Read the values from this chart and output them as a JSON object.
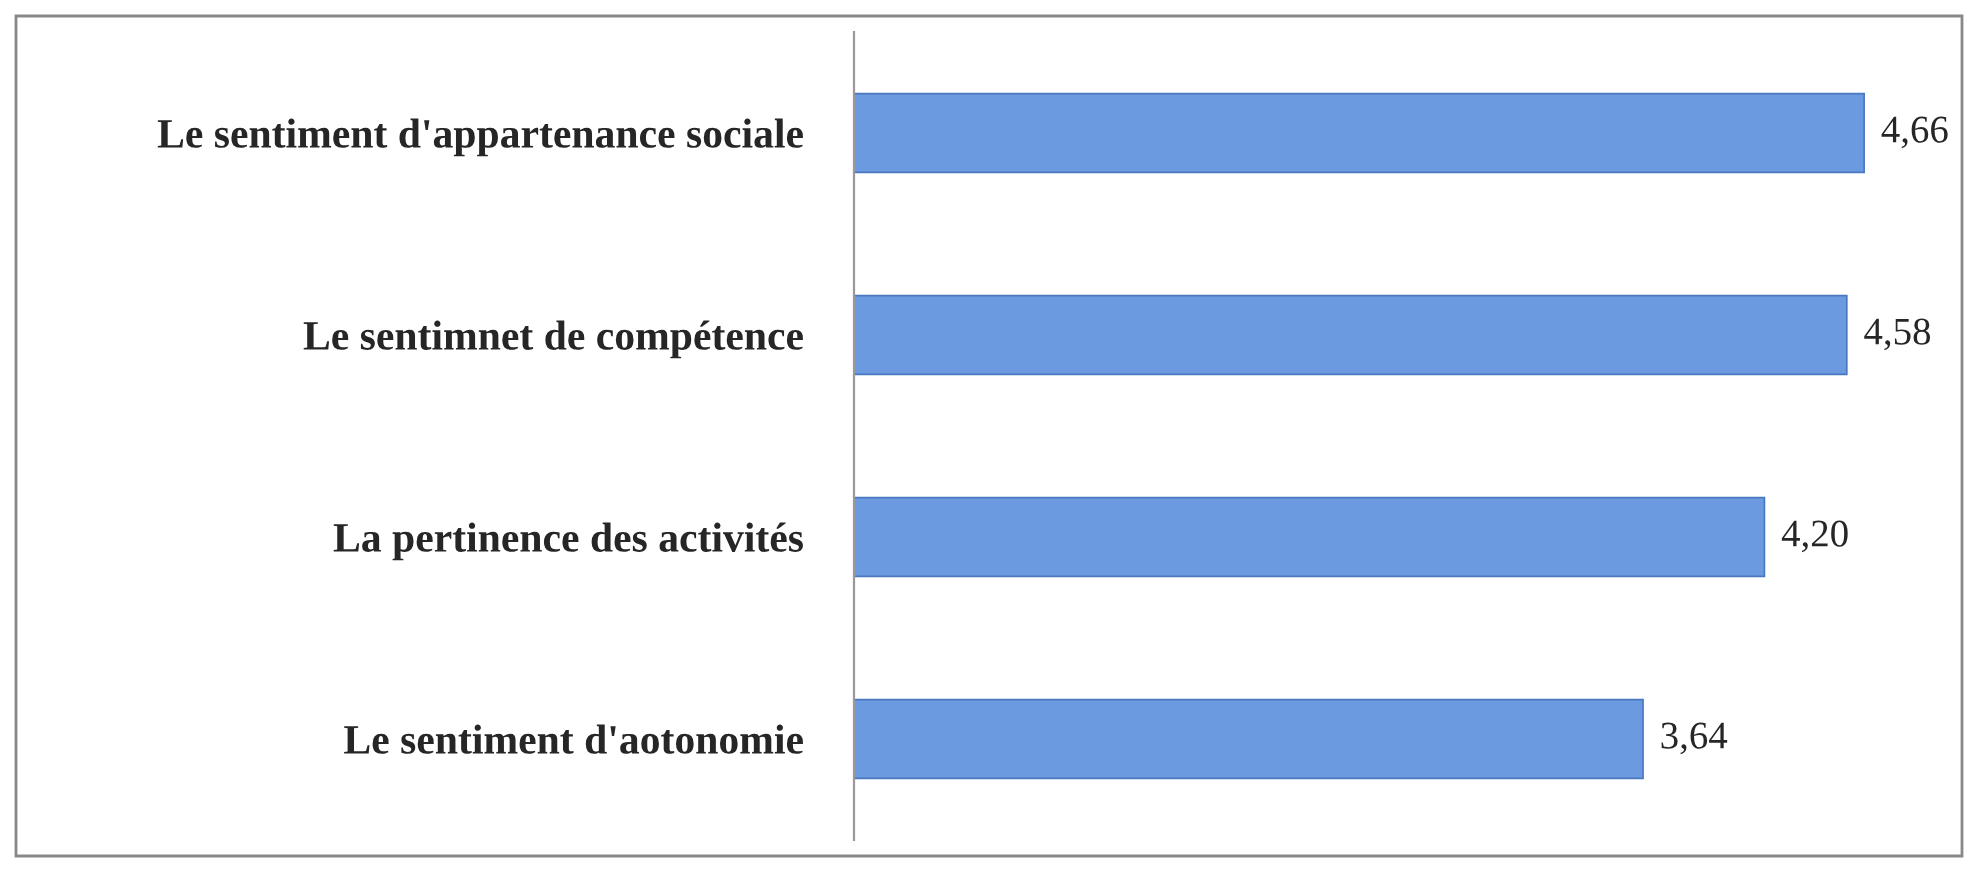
{
  "chart_data": {
    "type": "bar",
    "orientation": "horizontal",
    "categories": [
      "Le sentiment d'appartenance sociale",
      "Le sentimnet de compétence",
      "La pertinence des activités",
      "Le sentiment d'aotonomie"
    ],
    "values": [
      4.66,
      4.58,
      4.2,
      3.64
    ],
    "value_labels": [
      "4,66",
      "4,58",
      "4,20",
      "3,64"
    ],
    "color": "#6c9ae0",
    "tick_labels": "y",
    "grid": false,
    "legend": false
  }
}
